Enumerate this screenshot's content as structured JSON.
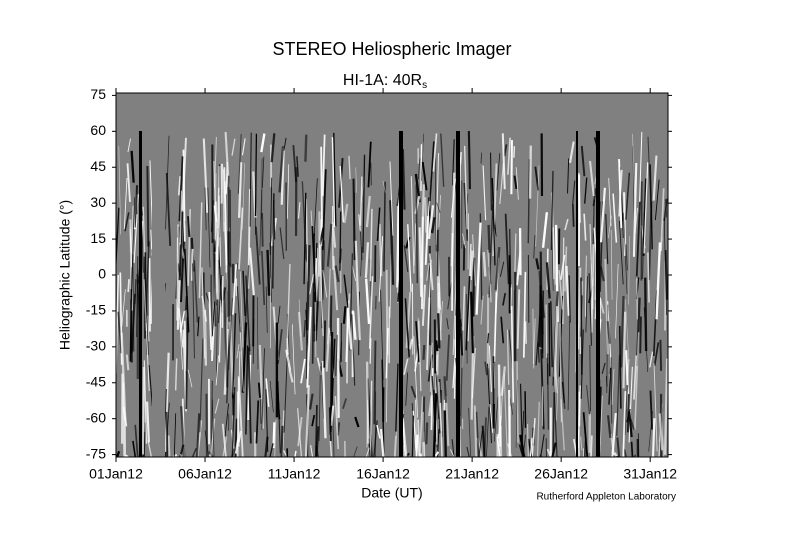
{
  "chart_data": {
    "type": "image",
    "title": "STEREO Heliospheric Imager",
    "subtitle": {
      "text": "HI-1A: 40R",
      "subscript": "s"
    },
    "x_label": "Date (UT)",
    "y_label": "Heliographic Latitude (°)",
    "credit": "Rutherford Appleton Laboratory",
    "xlim": [
      1,
      32
    ],
    "xticks": [
      {
        "value": 1,
        "label": "01Jan12"
      },
      {
        "value": 6,
        "label": "06Jan12"
      },
      {
        "value": 11,
        "label": "11Jan12"
      },
      {
        "value": 16,
        "label": "16Jan12"
      },
      {
        "value": 21,
        "label": "21Jan12"
      },
      {
        "value": 26,
        "label": "26Jan12"
      },
      {
        "value": 31,
        "label": "31Jan12"
      }
    ],
    "ylim": [
      -76,
      76
    ],
    "yticks": [
      -75,
      -60,
      -45,
      -30,
      -15,
      0,
      15,
      30,
      45,
      60,
      75
    ]
  }
}
